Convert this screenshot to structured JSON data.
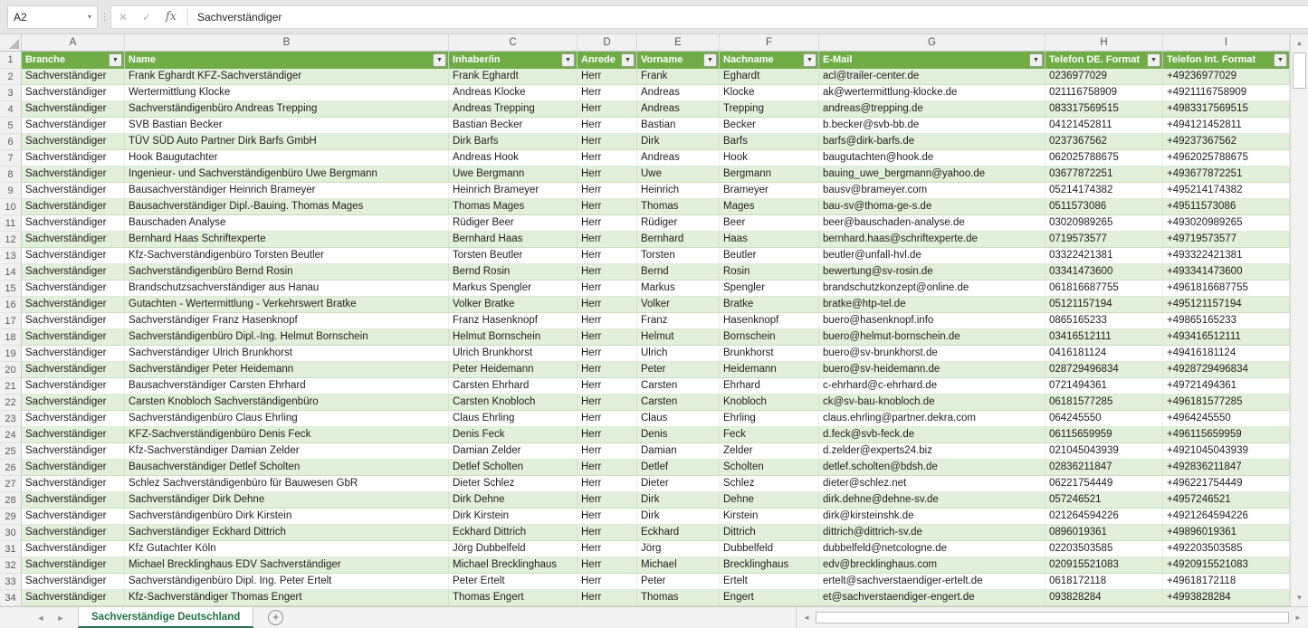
{
  "formula_bar": {
    "name_box": "A2",
    "formula": "Sachverständiger"
  },
  "icons": {
    "filter": "▼",
    "cancel": "✕",
    "accept": "✓",
    "fx": "fx",
    "name_box_caret": "▾",
    "handle_dots": "⋮",
    "scroll_up": "▲",
    "scroll_down": "▼",
    "scroll_left": "◄",
    "scroll_right": "►",
    "nav_left": "◄",
    "nav_right": "►",
    "add_sheet": "+"
  },
  "colors": {
    "header_green": "#70AD47",
    "band_green": "#E2EFDA",
    "tab_green": "#217346"
  },
  "grid": {
    "column_letters": [
      "A",
      "B",
      "C",
      "D",
      "E",
      "F",
      "G",
      "H",
      "I"
    ],
    "keys": [
      "branche",
      "name",
      "inhaber",
      "anrede",
      "vorname",
      "nachname",
      "email",
      "telefon-de",
      "telefon-int"
    ],
    "headers": [
      "Branche",
      "Name",
      "Inhaber/in",
      "Anrede",
      "Vorname",
      "Nachname",
      "E-Mail",
      "Telefon DE. Format",
      "Telefon Int. Format"
    ],
    "rows": [
      [
        "Sachverständiger",
        "Frank Eghardt KFZ-Sachverständiger",
        "Frank Eghardt",
        "Herr",
        "Frank",
        "Eghardt",
        "acl@trailer-center.de",
        "0236977029",
        "+49236977029"
      ],
      [
        "Sachverständiger",
        "Wertermittlung Klocke",
        "Andreas Klocke",
        "Herr",
        "Andreas",
        "Klocke",
        "ak@wertermittlung-klocke.de",
        "021116758909",
        "+4921116758909"
      ],
      [
        "Sachverständiger",
        "Sachverständigenbüro Andreas Trepping",
        "Andreas Trepping",
        "Herr",
        "Andreas",
        "Trepping",
        "andreas@trepping.de",
        "083317569515",
        "+4983317569515"
      ],
      [
        "Sachverständiger",
        "SVB Bastian Becker",
        "Bastian Becker",
        "Herr",
        "Bastian",
        "Becker",
        "b.becker@svb-bb.de",
        "04121452811",
        "+494121452811"
      ],
      [
        "Sachverständiger",
        "TÜV SÜD Auto Partner Dirk Barfs GmbH",
        "Dirk Barfs",
        "Herr",
        "Dirk",
        "Barfs",
        "barfs@dirk-barfs.de",
        "0237367562",
        "+49237367562"
      ],
      [
        "Sachverständiger",
        "Hook Baugutachter",
        "Andreas Hook",
        "Herr",
        "Andreas",
        "Hook",
        "baugutachten@hook.de",
        "062025788675",
        "+4962025788675"
      ],
      [
        "Sachverständiger",
        "Ingenieur- und Sachverständigenbüro Uwe Bergmann",
        "Uwe Bergmann",
        "Herr",
        "Uwe",
        "Bergmann",
        "bauing_uwe_bergmann@yahoo.de",
        "03677872251",
        "+493677872251"
      ],
      [
        "Sachverständiger",
        "Bausachverständiger Heinrich Brameyer",
        "Heinrich Brameyer",
        "Herr",
        "Heinrich",
        "Brameyer",
        "bausv@brameyer.com",
        "05214174382",
        "+495214174382"
      ],
      [
        "Sachverständiger",
        "Bausachverständiger Dipl.-Bauing. Thomas Mages",
        "Thomas Mages",
        "Herr",
        "Thomas",
        "Mages",
        "bau-sv@thoma-ge-s.de",
        "0511573086",
        "+49511573086"
      ],
      [
        "Sachverständiger",
        "Bauschaden Analyse",
        "Rüdiger Beer",
        "Herr",
        "Rüdiger",
        "Beer",
        "beer@bauschaden-analyse.de",
        "03020989265",
        "+493020989265"
      ],
      [
        "Sachverständiger",
        "Bernhard Haas Schriftexperte",
        "Bernhard Haas",
        "Herr",
        "Bernhard",
        "Haas",
        "bernhard.haas@schriftexperte.de",
        "0719573577",
        "+49719573577"
      ],
      [
        "Sachverständiger",
        "Kfz-Sachverständigenbüro Torsten Beutler",
        "Torsten Beutler",
        "Herr",
        "Torsten",
        "Beutler",
        "beutler@unfall-hvl.de",
        "03322421381",
        "+493322421381"
      ],
      [
        "Sachverständiger",
        "Sachverständigenbüro Bernd Rosin",
        "Bernd Rosin",
        "Herr",
        "Bernd",
        "Rosin",
        "bewertung@sv-rosin.de",
        "03341473600",
        "+493341473600"
      ],
      [
        "Sachverständiger",
        "Brandschutzsachverständiger aus Hanau",
        "Markus Spengler",
        "Herr",
        "Markus",
        "Spengler",
        "brandschutzkonzept@online.de",
        "061816687755",
        "+4961816687755"
      ],
      [
        "Sachverständiger",
        "Gutachten - Wertermittlung - Verkehrswert Bratke",
        "Volker Bratke",
        "Herr",
        "Volker",
        "Bratke",
        "bratke@htp-tel.de",
        "05121157194",
        "+495121157194"
      ],
      [
        "Sachverständiger",
        "Sachverständiger Franz Hasenknopf",
        "Franz Hasenknopf",
        "Herr",
        "Franz",
        "Hasenknopf",
        "buero@hasenknopf.info",
        "0865165233",
        "+49865165233"
      ],
      [
        "Sachverständiger",
        "Sachverständigenbüro Dipl.-Ing. Helmut Bornschein",
        "Helmut Bornschein",
        "Herr",
        "Helmut",
        "Bornschein",
        "buero@helmut-bornschein.de",
        "03416512111",
        "+493416512111"
      ],
      [
        "Sachverständiger",
        "Sachverständiger Ulrich Brunkhorst",
        "Ulrich Brunkhorst",
        "Herr",
        "Ulrich",
        "Brunkhorst",
        "buero@sv-brunkhorst.de",
        "0416181124",
        "+49416181124"
      ],
      [
        "Sachverständiger",
        "Sachverständiger Peter Heidemann",
        "Peter Heidemann",
        "Herr",
        "Peter",
        "Heidemann",
        "buero@sv-heidemann.de",
        "028729496834",
        "+4928729496834"
      ],
      [
        "Sachverständiger",
        "Bausachverständiger Carsten Ehrhard",
        "Carsten Ehrhard",
        "Herr",
        "Carsten",
        "Ehrhard",
        "c-ehrhard@c-ehrhard.de",
        "0721494361",
        "+49721494361"
      ],
      [
        "Sachverständiger",
        "Carsten Knobloch Sachverständigenbüro",
        "Carsten Knobloch",
        "Herr",
        "Carsten",
        "Knobloch",
        "ck@sv-bau-knobloch.de",
        "06181577285",
        "+496181577285"
      ],
      [
        "Sachverständiger",
        "Sachverständigenbüro Claus Ehrling",
        "Claus Ehrling",
        "Herr",
        "Claus",
        "Ehrling",
        "claus.ehrling@partner.dekra.com",
        "064245550",
        "+4964245550"
      ],
      [
        "Sachverständiger",
        "KFZ-Sachverständigenbüro Denis Feck",
        "Denis Feck",
        "Herr",
        "Denis",
        "Feck",
        "d.feck@svb-feck.de",
        "06115659959",
        "+496115659959"
      ],
      [
        "Sachverständiger",
        "Kfz-Sachverständiger Damian Zelder",
        "Damian Zelder",
        "Herr",
        "Damian",
        "Zelder",
        "d.zelder@experts24.biz",
        "021045043939",
        "+4921045043939"
      ],
      [
        "Sachverständiger",
        "Bausachverständiger Detlef Scholten",
        "Detlef Scholten",
        "Herr",
        "Detlef",
        "Scholten",
        "detlef.scholten@bdsh.de",
        "02836211847",
        "+492836211847"
      ],
      [
        "Sachverständiger",
        "Schlez Sachverständigenbüro für Bauwesen GbR",
        "Dieter Schlez",
        "Herr",
        "Dieter",
        "Schlez",
        "dieter@schlez.net",
        "06221754449",
        "+496221754449"
      ],
      [
        "Sachverständiger",
        "Sachverständiger Dirk Dehne",
        "Dirk Dehne",
        "Herr",
        "Dirk",
        "Dehne",
        "dirk.dehne@dehne-sv.de",
        "057246521",
        "+4957246521"
      ],
      [
        "Sachverständiger",
        "Sachverständigenbüro Dirk Kirstein",
        "Dirk Kirstein",
        "Herr",
        "Dirk",
        "Kirstein",
        "dirk@kirsteinshk.de",
        "021264594226",
        "+4921264594226"
      ],
      [
        "Sachverständiger",
        "Sachverständiger Eckhard Dittrich",
        "Eckhard Dittrich",
        "Herr",
        "Eckhard",
        "Dittrich",
        "dittrich@dittrich-sv.de",
        "0896019361",
        "+49896019361"
      ],
      [
        "Sachverständiger",
        "Kfz Gutachter Köln",
        "Jörg Dubbelfeld",
        "Herr",
        "Jörg",
        "Dubbelfeld",
        "dubbelfeld@netcologne.de",
        "02203503585",
        "+492203503585"
      ],
      [
        "Sachverständiger",
        "Michael Brecklinghaus EDV Sachverständiger",
        "Michael Brecklinghaus",
        "Herr",
        "Michael",
        "Brecklinghaus",
        "edv@brecklinghaus.com",
        "020915521083",
        "+4920915521083"
      ],
      [
        "Sachverständiger",
        "Sachverständigenbüro Dipl. Ing. Peter Ertelt",
        "Peter Ertelt",
        "Herr",
        "Peter",
        "Ertelt",
        "ertelt@sachverstaendiger-ertelt.de",
        "0618172118",
        "+49618172118"
      ],
      [
        "Sachverständiger",
        "Kfz-Sachverständiger Thomas Engert",
        "Thomas Engert",
        "Herr",
        "Thomas",
        "Engert",
        "et@sachverstaendiger-engert.de",
        "093828284",
        "+4993828284"
      ]
    ]
  },
  "sheet_bar": {
    "active_tab": "Sachverständige Deutschland"
  }
}
